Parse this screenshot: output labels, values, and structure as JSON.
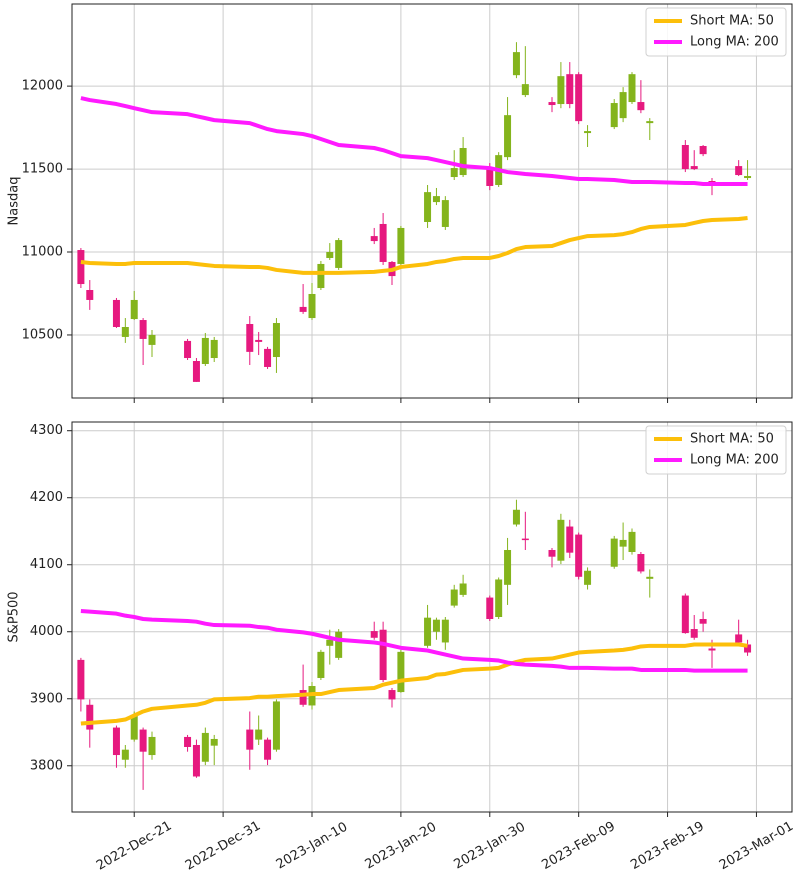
{
  "chart_data": [
    {
      "type": "candlestick",
      "y_label": "Nasdaq",
      "x": [
        "2022-12-15",
        "2022-12-16",
        "2022-12-19",
        "2022-12-20",
        "2022-12-21",
        "2022-12-22",
        "2022-12-23",
        "2022-12-27",
        "2022-12-28",
        "2022-12-29",
        "2022-12-30",
        "2023-01-03",
        "2023-01-04",
        "2023-01-05",
        "2023-01-06",
        "2023-01-09",
        "2023-01-10",
        "2023-01-11",
        "2023-01-12",
        "2023-01-13",
        "2023-01-17",
        "2023-01-18",
        "2023-01-19",
        "2023-01-20",
        "2023-01-23",
        "2023-01-24",
        "2023-01-25",
        "2023-01-26",
        "2023-01-27",
        "2023-01-30",
        "2023-01-31",
        "2023-02-01",
        "2023-02-02",
        "2023-02-03",
        "2023-02-06",
        "2023-02-07",
        "2023-02-08",
        "2023-02-09",
        "2023-02-10",
        "2023-02-13",
        "2023-02-14",
        "2023-02-15",
        "2023-02-16",
        "2023-02-17",
        "2023-02-21",
        "2023-02-22",
        "2023-02-23",
        "2023-02-24",
        "2023-02-27",
        "2023-02-28"
      ],
      "open": [
        11012,
        10771,
        10711,
        10488,
        10596,
        10590,
        10440,
        10464,
        10343,
        10325,
        10361,
        10566,
        10470,
        10416,
        10367,
        10669,
        10602,
        10783,
        10964,
        10904,
        11096,
        11169,
        10940,
        10928,
        11181,
        11301,
        11151,
        11452,
        11464,
        11512,
        11404,
        11572,
        12066,
        11946,
        11904,
        11892,
        12072,
        12072,
        11717,
        11753,
        11807,
        11904,
        11904,
        11777,
        11645,
        11518,
        11639,
        11428,
        11518,
        11446
      ],
      "high": [
        11024,
        10831,
        10723,
        10602,
        10765,
        10602,
        10530,
        10476,
        10361,
        10512,
        10488,
        10614,
        10518,
        10428,
        10602,
        10807,
        10813,
        10946,
        11054,
        11084,
        11145,
        11235,
        10946,
        11157,
        11404,
        11386,
        11337,
        11614,
        11693,
        11536,
        11602,
        11934,
        12265,
        12241,
        11934,
        12145,
        12145,
        12084,
        11765,
        11922,
        11994,
        12084,
        12036,
        11807,
        11675,
        11614,
        11645,
        11446,
        11554,
        11554
      ],
      "low": [
        10783,
        10651,
        10542,
        10452,
        10590,
        10319,
        10367,
        10349,
        10217,
        10313,
        10337,
        10319,
        10379,
        10295,
        10271,
        10627,
        10590,
        10771,
        10952,
        10892,
        11048,
        10922,
        10801,
        10904,
        11145,
        11283,
        11133,
        11434,
        11452,
        11373,
        11392,
        11554,
        12048,
        11934,
        11843,
        11867,
        11867,
        11771,
        11633,
        11741,
        11783,
        11892,
        11837,
        11675,
        11482,
        11494,
        11578,
        11343,
        11458,
        11434
      ],
      "close": [
        10807,
        10711,
        10548,
        10548,
        10711,
        10476,
        10500,
        10361,
        10217,
        10482,
        10470,
        10398,
        10458,
        10307,
        10572,
        10639,
        10747,
        10928,
        11000,
        11072,
        11066,
        10940,
        10855,
        11145,
        11361,
        11337,
        11313,
        11506,
        11627,
        11398,
        11584,
        11825,
        12205,
        12012,
        11886,
        12060,
        11892,
        11789,
        11729,
        11898,
        11964,
        12072,
        11855,
        11789,
        11500,
        11500,
        11590,
        11398,
        11464,
        11458
      ],
      "up_color": "#84b41c",
      "down_color": "#e6197f",
      "series": [
        {
          "name": "Short MA: 50",
          "color": "#fcbf0a",
          "values": [
            10940,
            10934,
            10928,
            10928,
            10934,
            10934,
            10934,
            10934,
            10928,
            10922,
            10916,
            10910,
            10910,
            10904,
            10892,
            10874,
            10874,
            10874,
            10874,
            10874,
            10880,
            10886,
            10892,
            10910,
            10928,
            10940,
            10946,
            10958,
            10964,
            10964,
            10976,
            10994,
            11018,
            11030,
            11036,
            11054,
            11072,
            11084,
            11096,
            11102,
            11108,
            11120,
            11139,
            11151,
            11163,
            11175,
            11187,
            11193,
            11199,
            11205
          ]
        },
        {
          "name": "Long MA: 200",
          "color": "#ff1aff",
          "values": [
            11928,
            11916,
            11892,
            11880,
            11867,
            11855,
            11843,
            11831,
            11819,
            11807,
            11795,
            11777,
            11759,
            11741,
            11729,
            11711,
            11699,
            11681,
            11663,
            11645,
            11627,
            11614,
            11596,
            11578,
            11566,
            11554,
            11542,
            11530,
            11518,
            11506,
            11494,
            11482,
            11476,
            11470,
            11458,
            11452,
            11446,
            11440,
            11440,
            11434,
            11428,
            11422,
            11422,
            11422,
            11416,
            11416,
            11410,
            11410,
            11410,
            11410
          ]
        }
      ],
      "xlim": [
        "2022-12-14",
        "2023-03-05"
      ],
      "ylim": [
        10120,
        12495
      ],
      "yticks": [
        10500,
        11000,
        11500,
        12000
      ],
      "grid": true,
      "legend": "upper right"
    },
    {
      "type": "candlestick",
      "y_label": "S&P500",
      "x": [
        "2022-12-15",
        "2022-12-16",
        "2022-12-19",
        "2022-12-20",
        "2022-12-21",
        "2022-12-22",
        "2022-12-23",
        "2022-12-27",
        "2022-12-28",
        "2022-12-29",
        "2022-12-30",
        "2023-01-03",
        "2023-01-04",
        "2023-01-05",
        "2023-01-06",
        "2023-01-09",
        "2023-01-10",
        "2023-01-11",
        "2023-01-12",
        "2023-01-13",
        "2023-01-17",
        "2023-01-18",
        "2023-01-19",
        "2023-01-20",
        "2023-01-23",
        "2023-01-24",
        "2023-01-25",
        "2023-01-26",
        "2023-01-27",
        "2023-01-30",
        "2023-01-31",
        "2023-02-01",
        "2023-02-02",
        "2023-02-03",
        "2023-02-06",
        "2023-02-07",
        "2023-02-08",
        "2023-02-09",
        "2023-02-10",
        "2023-02-13",
        "2023-02-14",
        "2023-02-15",
        "2023-02-16",
        "2023-02-17",
        "2023-02-21",
        "2023-02-22",
        "2023-02-23",
        "2023-02-24",
        "2023-02-27",
        "2023-02-28"
      ],
      "open": [
        3958,
        3891,
        3857,
        3809,
        3839,
        3854,
        3816,
        3843,
        3831,
        3806,
        3830,
        3854,
        3839,
        3839,
        3824,
        3913,
        3890,
        3931,
        3979,
        3961,
        4001,
        4003,
        3913,
        3910,
        3979,
        4000,
        3984,
        4039,
        4055,
        4051,
        4022,
        4070,
        4160,
        4139,
        4122,
        4106,
        4157,
        4145,
        4070,
        4097,
        4127,
        4119,
        4116,
        4079,
        4054,
        4004,
        4019,
        3975,
        3996,
        3981
      ],
      "high": [
        3961,
        3899,
        3860,
        3831,
        3881,
        3857,
        3851,
        3846,
        3839,
        3857,
        3846,
        3881,
        3875,
        3842,
        3899,
        3951,
        3925,
        3973,
        4003,
        4004,
        4015,
        4015,
        3916,
        3973,
        4040,
        4021,
        4022,
        4070,
        4085,
        4054,
        4081,
        4140,
        4197,
        4179,
        4125,
        4176,
        4167,
        4148,
        4096,
        4143,
        4163,
        4154,
        4119,
        4093,
        4057,
        4025,
        4030,
        3988,
        4018,
        3988
      ],
      "low": [
        3881,
        3827,
        3797,
        3797,
        3836,
        3764,
        3809,
        3821,
        3782,
        3801,
        3801,
        3794,
        3831,
        3801,
        3821,
        3888,
        3884,
        3928,
        3951,
        3958,
        3988,
        3925,
        3887,
        3909,
        3976,
        3988,
        3973,
        4036,
        4052,
        4016,
        4019,
        4040,
        4157,
        4122,
        4096,
        4101,
        4110,
        4078,
        4063,
        4094,
        4107,
        4115,
        4087,
        4051,
        3997,
        3988,
        4000,
        3946,
        3979,
        3964
      ],
      "close": [
        3899,
        3854,
        3816,
        3824,
        3876,
        3821,
        3843,
        3828,
        3784,
        3849,
        3840,
        3824,
        3854,
        3809,
        3896,
        3891,
        3919,
        3970,
        3988,
        4000,
        3991,
        3928,
        3899,
        3970,
        4021,
        4018,
        4018,
        4063,
        4072,
        4019,
        4078,
        4122,
        4182,
        4137,
        4112,
        4167,
        4118,
        4082,
        4091,
        4139,
        4137,
        4149,
        4090,
        4082,
        3998,
        3991,
        4012,
        3972,
        3984,
        3969
      ],
      "up_color": "#84b41c",
      "down_color": "#e6197f",
      "series": [
        {
          "name": "Short MA: 50",
          "color": "#fcbf0a",
          "values": [
            3863,
            3864,
            3867,
            3869,
            3875,
            3881,
            3885,
            3890,
            3891,
            3894,
            3899,
            3901,
            3903,
            3903,
            3904,
            3906,
            3907,
            3907,
            3910,
            3913,
            3916,
            3921,
            3924,
            3927,
            3931,
            3936,
            3937,
            3940,
            3943,
            3945,
            3946,
            3951,
            3955,
            3958,
            3960,
            3963,
            3966,
            3969,
            3970,
            3972,
            3973,
            3975,
            3978,
            3979,
            3979,
            3981,
            3981,
            3981,
            3981,
            3979
          ]
        },
        {
          "name": "Long MA: 200",
          "color": "#ff1aff",
          "values": [
            4031,
            4030,
            4027,
            4024,
            4022,
            4019,
            4018,
            4016,
            4015,
            4012,
            4010,
            4009,
            4007,
            4006,
            4003,
            3999,
            3997,
            3994,
            3991,
            3988,
            3984,
            3982,
            3979,
            3976,
            3972,
            3969,
            3966,
            3963,
            3960,
            3958,
            3957,
            3954,
            3952,
            3951,
            3949,
            3948,
            3946,
            3946,
            3946,
            3945,
            3945,
            3945,
            3943,
            3943,
            3943,
            3942,
            3942,
            3942,
            3942,
            3942
          ]
        }
      ],
      "xlim": [
        "2022-12-14",
        "2023-03-05"
      ],
      "xticks": [
        {
          "value": "2022-12-21",
          "label": "2022-Dec-21"
        },
        {
          "value": "2022-12-31",
          "label": "2022-Dec-31"
        },
        {
          "value": "2023-01-10",
          "label": "2023-Jan-10"
        },
        {
          "value": "2023-01-20",
          "label": "2023-Jan-20"
        },
        {
          "value": "2023-01-30",
          "label": "2023-Jan-30"
        },
        {
          "value": "2023-02-09",
          "label": "2023-Feb-09"
        },
        {
          "value": "2023-02-19",
          "label": "2023-Feb-19"
        },
        {
          "value": "2023-03-01",
          "label": "2023-Mar-01"
        }
      ],
      "ylim": [
        3731,
        4313
      ],
      "yticks": [
        3800,
        3900,
        4000,
        4100,
        4200,
        4300
      ],
      "grid": true,
      "legend": "upper right"
    }
  ]
}
